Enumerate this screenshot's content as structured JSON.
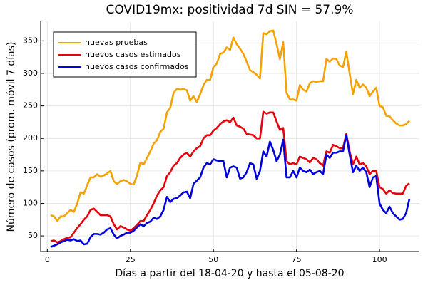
{
  "chart_data": {
    "type": "line",
    "title": "COVID19mx: positividad 7d SIN = 57.9%",
    "x_label": "Días a partir del 18-04-20 y hasta el 05-08-20",
    "y_label": "Número de casos (prom. móvil 7 días)",
    "x": [
      1,
      2,
      3,
      4,
      5,
      6,
      7,
      8,
      9,
      10,
      11,
      12,
      13,
      14,
      15,
      16,
      17,
      18,
      19,
      20,
      21,
      22,
      23,
      24,
      25,
      26,
      27,
      28,
      29,
      30,
      31,
      32,
      33,
      34,
      35,
      36,
      37,
      38,
      39,
      40,
      41,
      42,
      43,
      44,
      45,
      46,
      47,
      48,
      49,
      50,
      51,
      52,
      53,
      54,
      55,
      56,
      57,
      58,
      59,
      60,
      61,
      62,
      63,
      64,
      65,
      66,
      67,
      68,
      69,
      70,
      71,
      72,
      73,
      74,
      75,
      76,
      77,
      78,
      79,
      80,
      81,
      82,
      83,
      84,
      85,
      86,
      87,
      88,
      89,
      90,
      91,
      92,
      93,
      94,
      95,
      96,
      97,
      98,
      99,
      100,
      101,
      102,
      103,
      104,
      105,
      106,
      107,
      108,
      109
    ],
    "series": [
      {
        "name": "nuevas pruebas",
        "color": "#f5a200",
        "values": [
          82,
          80,
          73,
          80,
          80,
          85,
          90,
          87,
          100,
          117,
          115,
          128,
          140,
          140,
          145,
          141,
          143,
          146,
          150,
          134,
          130,
          134,
          136,
          134,
          130,
          129,
          143,
          163,
          160,
          170,
          180,
          192,
          197,
          210,
          215,
          240,
          247,
          270,
          276,
          275,
          276,
          274,
          258,
          265,
          256,
          268,
          282,
          290,
          290,
          310,
          315,
          330,
          332,
          340,
          336,
          355,
          345,
          338,
          330,
          318,
          305,
          302,
          298,
          292,
          362,
          360,
          365,
          366,
          345,
          322,
          348,
          270,
          260,
          260,
          258,
          282,
          275,
          272,
          285,
          288,
          287,
          288,
          288,
          322,
          318,
          323,
          322,
          312,
          310,
          333,
          300,
          268,
          290,
          278,
          283,
          278,
          265,
          272,
          278,
          250,
          248,
          235,
          234,
          228,
          223,
          220,
          220,
          222,
          227
        ]
      },
      {
        "name": "nuevos casos estimados",
        "color": "#e8000b",
        "values": [
          42,
          43,
          40,
          42,
          45,
          47,
          48,
          55,
          62,
          68,
          75,
          80,
          90,
          92,
          87,
          82,
          82,
          82,
          80,
          68,
          60,
          65,
          63,
          60,
          58,
          62,
          67,
          73,
          73,
          82,
          90,
          100,
          112,
          120,
          125,
          142,
          148,
          158,
          162,
          170,
          175,
          178,
          172,
          180,
          185,
          188,
          200,
          205,
          205,
          212,
          216,
          222,
          226,
          228,
          225,
          232,
          220,
          218,
          215,
          207,
          206,
          205,
          200,
          200,
          241,
          238,
          240,
          240,
          226,
          213,
          216,
          165,
          160,
          162,
          160,
          172,
          170,
          168,
          163,
          170,
          168,
          162,
          158,
          180,
          178,
          190,
          188,
          185,
          185,
          207,
          180,
          160,
          172,
          160,
          162,
          157,
          145,
          150,
          150,
          125,
          122,
          115,
          120,
          116,
          115,
          115,
          115,
          127,
          131
        ]
      },
      {
        "name": "nuevos casos confirmados",
        "color": "#0000dd",
        "values": [
          33,
          35,
          37,
          40,
          42,
          44,
          43,
          45,
          42,
          43,
          37,
          38,
          48,
          53,
          53,
          52,
          55,
          60,
          62,
          52,
          46,
          50,
          52,
          55,
          55,
          58,
          63,
          68,
          65,
          70,
          72,
          78,
          76,
          80,
          90,
          110,
          102,
          107,
          108,
          112,
          117,
          118,
          108,
          130,
          135,
          140,
          155,
          162,
          160,
          168,
          166,
          165,
          165,
          140,
          155,
          157,
          155,
          138,
          140,
          148,
          162,
          160,
          138,
          150,
          180,
          172,
          195,
          182,
          165,
          175,
          198,
          140,
          140,
          150,
          140,
          155,
          150,
          148,
          152,
          145,
          148,
          150,
          145,
          175,
          170,
          178,
          178,
          180,
          180,
          205,
          175,
          148,
          158,
          150,
          155,
          148,
          125,
          140,
          142,
          100,
          90,
          85,
          95,
          85,
          80,
          75,
          76,
          85,
          107
        ]
      }
    ],
    "xlim": [
      -2,
      112
    ],
    "ylim": [
      26,
      380
    ],
    "xticks": [
      0,
      25,
      50,
      75,
      100
    ],
    "yticks": [
      50,
      100,
      150,
      200,
      250,
      300,
      350
    ],
    "grid": true,
    "legend": "top-left"
  }
}
